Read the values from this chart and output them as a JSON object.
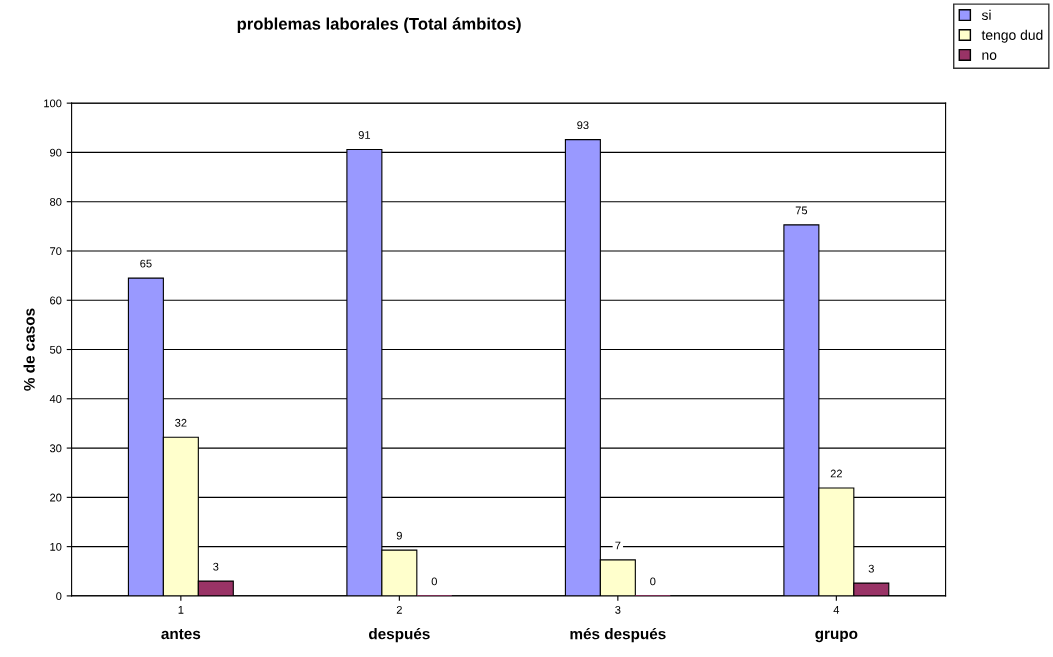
{
  "chart_data": {
    "type": "bar",
    "title": "problemas laborales (Total ámbitos)",
    "ylabel": "% de casos",
    "categories": [
      "1",
      "2",
      "3",
      "4"
    ],
    "series": [
      {
        "name": "si",
        "color": "#9999ff",
        "values": [
          64.5,
          90.6,
          92.6,
          75.3
        ],
        "value_labels": [
          "65",
          "91",
          "93",
          "75"
        ]
      },
      {
        "name": "tengo dud",
        "color": "#ffffcc",
        "values": [
          32.2,
          9.3,
          7.3,
          21.9
        ],
        "value_labels": [
          "32",
          "9",
          "7",
          "22"
        ]
      },
      {
        "name": "no",
        "color": "#993366",
        "values": [
          3.0,
          0,
          0,
          2.6
        ],
        "value_labels": [
          "3",
          "0",
          "0",
          "3"
        ]
      }
    ],
    "annotations": [
      "antes",
      "después",
      "més después",
      "grupo"
    ],
    "ylim": [
      0,
      100
    ],
    "yticks": [
      0,
      10,
      20,
      30,
      40,
      50,
      60,
      70,
      80,
      90,
      100
    ],
    "grid": "y",
    "legend": "top right"
  }
}
